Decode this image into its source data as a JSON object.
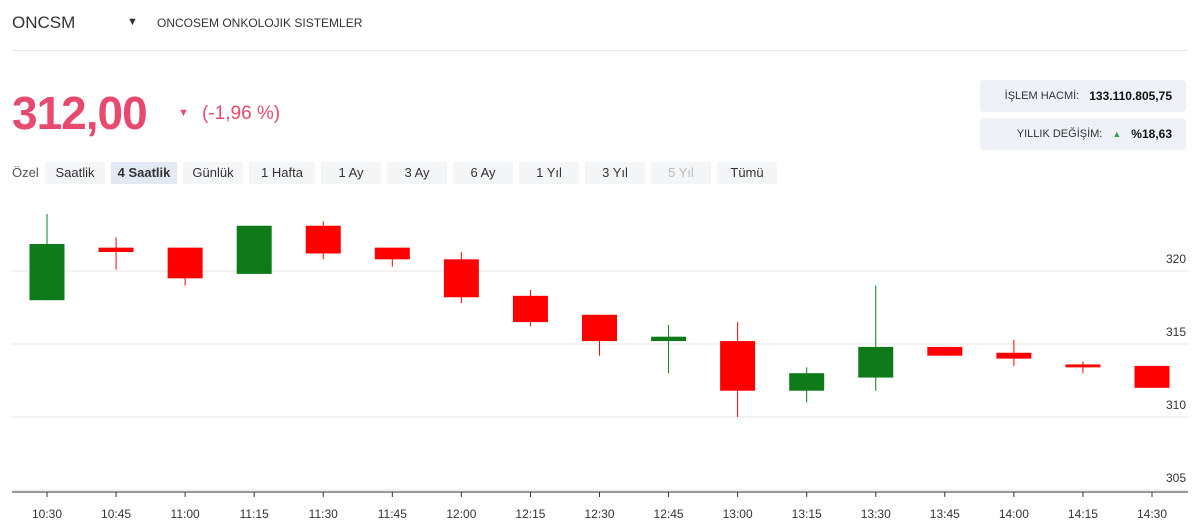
{
  "header": {
    "symbol": "ONCSM",
    "name": "ONCOSEM ONKOLOJIK SISTEMLER",
    "price": "312,00",
    "change": "(-1,96 %)"
  },
  "stats": [
    {
      "label": "İŞLEM HACMİ:",
      "value": "133.110.805,75"
    },
    {
      "label": "YILLIK DEĞİŞİM:",
      "value": "%18,63"
    }
  ],
  "ranges": [
    "Özel",
    "Saatlik",
    "4 Saatlik",
    "Günlük",
    "1 Hafta",
    "1 Ay",
    "3 Ay",
    "6 Ay",
    "1 Yıl",
    "3 Yıl",
    "5 Yıl",
    "Tümü"
  ],
  "chart_data": {
    "type": "candlestick",
    "categories": [
      "10:30",
      "10:45",
      "11:00",
      "11:15",
      "11:30",
      "11:45",
      "12:00",
      "12:15",
      "12:30",
      "12:45",
      "13:00",
      "13:15",
      "13:30",
      "13:45",
      "14:00",
      "14:15",
      "14:30"
    ],
    "open": [
      318.0,
      321.6,
      321.6,
      319.8,
      323.1,
      321.6,
      320.8,
      318.3,
      317.0,
      315.2,
      315.2,
      311.8,
      312.7,
      314.8,
      314.4,
      313.6,
      313.5
    ],
    "high": [
      323.9,
      322.3,
      321.6,
      323.1,
      323.4,
      321.6,
      321.3,
      318.7,
      317.0,
      316.3,
      316.5,
      313.4,
      319.0,
      314.8,
      315.3,
      313.8,
      313.5
    ],
    "low": [
      318.0,
      320.1,
      319.0,
      319.8,
      320.8,
      320.3,
      317.8,
      316.2,
      314.2,
      313.0,
      310.0,
      311.0,
      311.8,
      314.2,
      313.5,
      313.0,
      312.0
    ],
    "close": [
      321.85,
      321.3,
      319.5,
      323.1,
      321.2,
      320.8,
      318.2,
      316.5,
      315.2,
      315.5,
      311.8,
      313.0,
      314.8,
      314.2,
      314.0,
      313.4,
      312.0
    ],
    "up_color": "#0f7a1a",
    "down_color": "#ff0000",
    "ylim": [
      305,
      325
    ],
    "yticks": [
      305,
      310,
      315,
      320
    ],
    "grid": true
  }
}
